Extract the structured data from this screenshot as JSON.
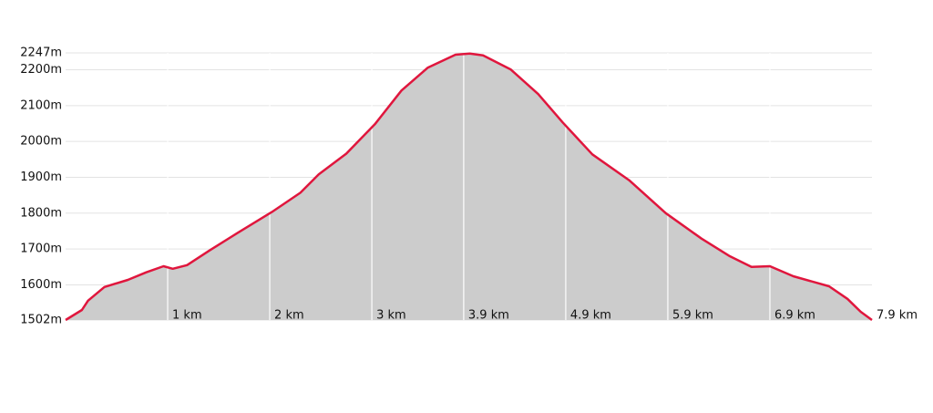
{
  "chart_data": {
    "type": "area",
    "x": [
      0,
      0.16,
      0.22,
      0.38,
      0.61,
      0.79,
      0.96,
      1.05,
      1.19,
      1.41,
      1.68,
      2.02,
      2.3,
      2.48,
      2.75,
      3.03,
      3.29,
      3.55,
      3.82,
      3.96,
      4.09,
      4.36,
      4.63,
      4.87,
      5.16,
      5.52,
      5.88,
      6.23,
      6.5,
      6.72,
      6.9,
      7.13,
      7.48,
      7.66,
      7.79,
      7.9
    ],
    "values": [
      1502,
      1530,
      1556,
      1594,
      1614,
      1635,
      1652,
      1645,
      1655,
      1696,
      1744,
      1803,
      1857,
      1908,
      1966,
      2048,
      2142,
      2206,
      2242,
      2245,
      2240,
      2201,
      2132,
      2053,
      1964,
      1892,
      1800,
      1729,
      1681,
      1650,
      1652,
      1624,
      1596,
      1561,
      1525,
      1502
    ],
    "color": "#e0163d",
    "fill_color": "#cccccc",
    "xlim": [
      0,
      7.9
    ],
    "ylim": [
      1502,
      2247
    ],
    "xticks": [
      {
        "value": 1,
        "label": "1 km"
      },
      {
        "value": 2,
        "label": "2 km"
      },
      {
        "value": 3,
        "label": "3 km"
      },
      {
        "value": 3.9,
        "label": "3.9 km"
      },
      {
        "value": 4.9,
        "label": "4.9 km"
      },
      {
        "value": 5.9,
        "label": "5.9 km"
      },
      {
        "value": 6.9,
        "label": "6.9 km"
      },
      {
        "value": 7.9,
        "label": "7.9 km"
      }
    ],
    "yticks": [
      {
        "value": 1502,
        "label": "1502m"
      },
      {
        "value": 1600,
        "label": "1600m"
      },
      {
        "value": 1700,
        "label": "1700m"
      },
      {
        "value": 1800,
        "label": "1800m"
      },
      {
        "value": 1900,
        "label": "1900m"
      },
      {
        "value": 2000,
        "label": "2000m"
      },
      {
        "value": 2100,
        "label": "2100m"
      },
      {
        "value": 2200,
        "label": "2200m"
      },
      {
        "value": 2247,
        "label": "2247m"
      }
    ],
    "grid": true
  }
}
